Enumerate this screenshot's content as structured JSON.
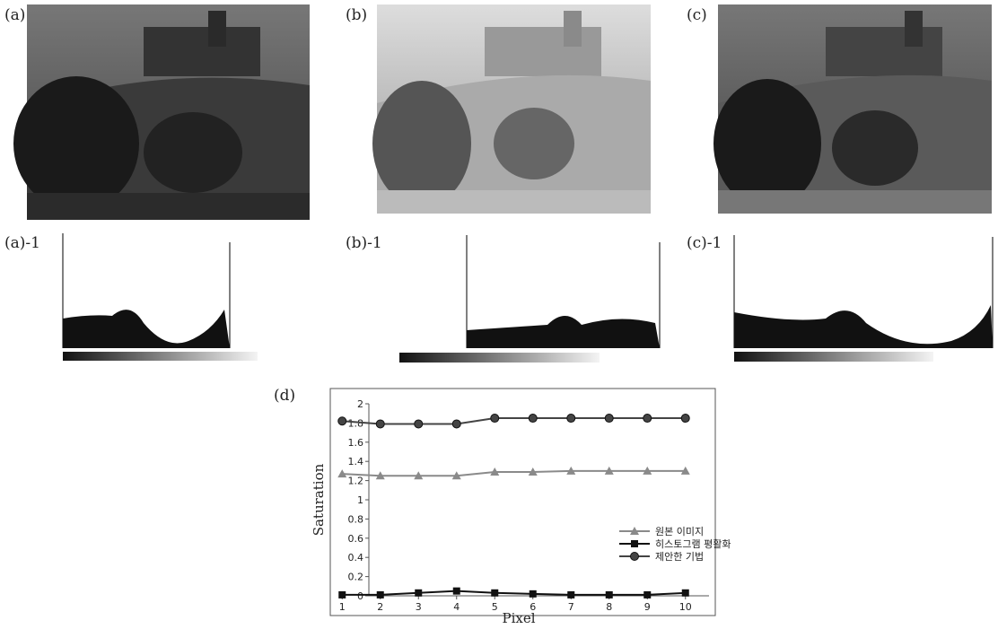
{
  "panels": [
    {
      "label": "(a)"
    },
    {
      "label": "(b)"
    },
    {
      "label": "(c)"
    }
  ],
  "histograms": [
    {
      "label": "(a)-1"
    },
    {
      "label": "(b)-1"
    },
    {
      "label": "(c)-1"
    }
  ],
  "chart_data": {
    "type": "line",
    "panel_label": "(d)",
    "x_label": "Pixel",
    "y_label": "Saturation",
    "x": [
      1,
      2,
      3,
      4,
      5,
      6,
      7,
      8,
      9,
      10
    ],
    "xlim": [
      0.5,
      10.5
    ],
    "xticks": [
      1,
      2,
      3,
      4,
      5,
      6,
      7,
      8,
      9,
      10
    ],
    "ylim": [
      0,
      2
    ],
    "yticks": [
      0,
      0.2,
      0.4,
      0.6,
      0.8,
      1,
      1.2,
      1.4,
      1.6,
      1.8,
      2
    ],
    "series": [
      {
        "name": "원본 이미지",
        "color": "#8a8a8a",
        "marker": "triangle",
        "values": [
          1.27,
          1.25,
          1.25,
          1.25,
          1.29,
          1.29,
          1.3,
          1.3,
          1.3,
          1.3
        ]
      },
      {
        "name": "히스토그램 평활화",
        "color": "#111111",
        "marker": "square",
        "values": [
          0.01,
          0.01,
          0.03,
          0.05,
          0.03,
          0.02,
          0.01,
          0.01,
          0.01,
          0.03
        ]
      },
      {
        "name": "제안한 기법",
        "color": "#444444",
        "marker": "circle",
        "values": [
          1.82,
          1.79,
          1.79,
          1.79,
          1.85,
          1.85,
          1.85,
          1.85,
          1.85,
          1.85
        ]
      }
    ],
    "legend": "lower right"
  }
}
